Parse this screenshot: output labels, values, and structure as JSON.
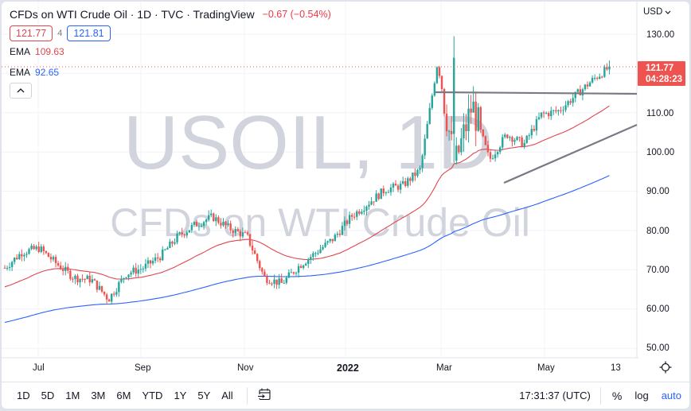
{
  "header": {
    "title": "CFDs on WTI Crude Oil · 1D · TVC · TradingView",
    "change": "−0.67 (−0.54%)",
    "sell_price": "121.77",
    "spread": "4",
    "buy_price": "121.81",
    "ema_fast_label": "EMA",
    "ema_fast_value": "109.63",
    "ema_slow_label": "EMA",
    "ema_slow_value": "92.65",
    "collapse_icon": "chevron-up-icon"
  },
  "watermark": {
    "symbol": "USOIL, 1D",
    "description": "CFDs on WTI Crude Oil"
  },
  "price_axis": {
    "currency": "USD",
    "labels": [
      "130.00",
      "110.00",
      "100.00",
      "90.00",
      "80.00",
      "70.00",
      "60.00",
      "50.00"
    ],
    "last_price": "121.77",
    "countdown": "04:28:23"
  },
  "time_axis": {
    "labels": [
      "Jul",
      "Sep",
      "Nov",
      "2022",
      "Mar",
      "May",
      "13"
    ],
    "settings_icon": "gear-icon"
  },
  "bottom_bar": {
    "ranges": [
      "1D",
      "5D",
      "1M",
      "3M",
      "6M",
      "YTD",
      "1Y",
      "5Y",
      "All"
    ],
    "goto_date_icon": "calendar-goto-icon",
    "clock": "17:31:37 (UTC)",
    "percent": "%",
    "log": "log",
    "auto": "auto"
  },
  "colors": {
    "up": "#26a69a",
    "down": "#ef5350",
    "ema_fast": "#e0474f",
    "ema_slow": "#2962ff",
    "trendline": "#787b86",
    "last_price_bg": "#ef5350",
    "grid": "#f0f3fa",
    "watermark": "#d1d4dc"
  },
  "chart_data": {
    "type": "candlestick",
    "title": "CFDs on WTI Crude Oil · 1D · TVC",
    "xlabel": "",
    "ylabel": "USD",
    "ylim": [
      47,
      133
    ],
    "x_ticks": [
      "Jul",
      "Sep",
      "Nov",
      "2022",
      "Mar",
      "May",
      "13"
    ],
    "y_ticks": [
      50,
      60,
      70,
      80,
      90,
      100,
      110,
      120,
      130
    ],
    "grid": true,
    "closes_approx": [
      {
        "date": "2021-06",
        "close": 70.5
      },
      {
        "date": "2021-07-early",
        "close": 74.5
      },
      {
        "date": "2021-07-mid",
        "close": 75.5
      },
      {
        "date": "2021-07-late",
        "close": 71.5
      },
      {
        "date": "2021-08-early",
        "close": 68.0
      },
      {
        "date": "2021-08-mid",
        "close": 67.5
      },
      {
        "date": "2021-08-late",
        "close": 62.5
      },
      {
        "date": "2021-09-early",
        "close": 69.0
      },
      {
        "date": "2021-09-mid",
        "close": 70.5
      },
      {
        "date": "2021-09-late",
        "close": 73.5
      },
      {
        "date": "2021-10-early",
        "close": 78.5
      },
      {
        "date": "2021-10-mid",
        "close": 81.5
      },
      {
        "date": "2021-10-late",
        "close": 83.5
      },
      {
        "date": "2021-11-early",
        "close": 80.5
      },
      {
        "date": "2021-11-mid",
        "close": 78.5
      },
      {
        "date": "2021-11-late",
        "close": 68.0
      },
      {
        "date": "2021-12-early",
        "close": 66.5
      },
      {
        "date": "2021-12-mid",
        "close": 71.0
      },
      {
        "date": "2021-12-late",
        "close": 74.5
      },
      {
        "date": "2022-01-early",
        "close": 78.0
      },
      {
        "date": "2022-01-mid",
        "close": 83.5
      },
      {
        "date": "2022-01-late",
        "close": 87.0
      },
      {
        "date": "2022-02-early",
        "close": 90.5
      },
      {
        "date": "2022-02-mid",
        "close": 91.5
      },
      {
        "date": "2022-02-late",
        "close": 95.5
      },
      {
        "date": "2022-03-early",
        "close": 123.0
      },
      {
        "date": "2022-03-mid",
        "close": 96.5
      },
      {
        "date": "2022-03-late",
        "close": 112.0
      },
      {
        "date": "2022-04-early",
        "close": 98.0
      },
      {
        "date": "2022-04-mid",
        "close": 104.5
      },
      {
        "date": "2022-04-late",
        "close": 102.0
      },
      {
        "date": "2022-05-early",
        "close": 109.5
      },
      {
        "date": "2022-05-mid",
        "close": 110.5
      },
      {
        "date": "2022-05-late",
        "close": 114.5
      },
      {
        "date": "2022-06-early",
        "close": 118.5
      },
      {
        "date": "2022-06-13",
        "close": 121.77
      }
    ],
    "series": [
      {
        "name": "EMA (fast)",
        "color": "#e0474f",
        "last": 109.63
      },
      {
        "name": "EMA (slow)",
        "color": "#2962ff",
        "last": 92.65
      }
    ],
    "annotations": [
      {
        "type": "horizontal_resistance",
        "price": 115.0,
        "from": "2022-02-late",
        "to": "2022-06-13"
      },
      {
        "type": "rising_support",
        "from_price": 92.0,
        "to_price": 106.5,
        "from": "2022-04-early",
        "to": "2022-06-13"
      },
      {
        "type": "last_price_line",
        "price": 121.77
      }
    ],
    "high": 129.5,
    "low": 62.0
  }
}
